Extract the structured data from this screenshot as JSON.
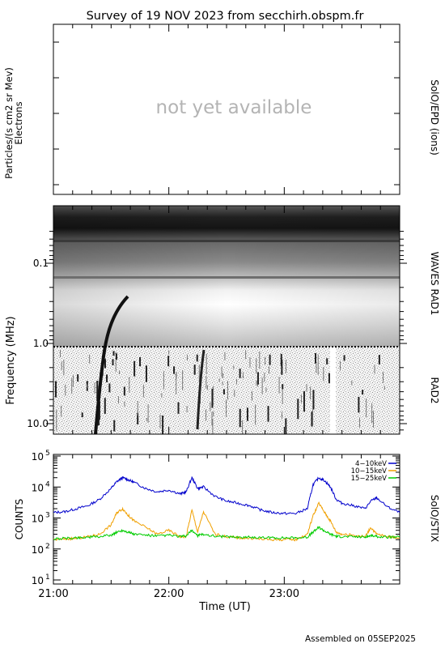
{
  "title": "Survey of 19 NOV 2023 from secchirh.obspm.fr",
  "footer": "Assembled on 05SEP2025",
  "epd": {
    "ylabel_line1": "Particles/(s cm2 sr Mev)",
    "ylabel_line2": "Electrons",
    "right_label": "SolO/EPD (ions)",
    "placeholder": "not yet available"
  },
  "waves": {
    "ylabel": "Frequency (MHz)",
    "right_label_rad1": "WAVES RAD1",
    "right_label_rad2": "RAD2",
    "y_ticks": [
      "0.1",
      "1.0",
      "10.0"
    ]
  },
  "stix": {
    "ylabel": "COUNTS",
    "right_label": "SolO/STIX",
    "y_ticks": [
      {
        "base": "10",
        "exp": "1"
      },
      {
        "base": "10",
        "exp": "2"
      },
      {
        "base": "10",
        "exp": "3"
      },
      {
        "base": "10",
        "exp": "4"
      },
      {
        "base": "10",
        "exp": "5"
      }
    ],
    "legend": [
      {
        "label": "4−10keV",
        "color": "#0000cc"
      },
      {
        "label": "10−15keV",
        "color": "#f0a000"
      },
      {
        "label": "15−25keV",
        "color": "#00cc00"
      }
    ]
  },
  "xaxis": {
    "label": "Time (UT)",
    "ticks": [
      "21:00",
      "22:00",
      "23:00"
    ]
  },
  "colors": {
    "blue": "#0000cc",
    "orange": "#f0a000",
    "green": "#00cc00"
  },
  "chart_data": {
    "type": "line",
    "title": "Survey of 19 NOV 2023 from secchirh.obspm.fr",
    "xlabel": "Time (UT)",
    "ylabel": "COUNTS",
    "x_unit": "hours UT",
    "xlim": [
      21.0,
      24.0
    ],
    "ylim": [
      10,
      100000
    ],
    "yscale": "log",
    "x": [
      21.0,
      21.1,
      21.2,
      21.3,
      21.4,
      21.5,
      21.55,
      21.6,
      21.65,
      21.7,
      21.8,
      21.9,
      22.0,
      22.1,
      22.15,
      22.2,
      22.25,
      22.3,
      22.4,
      22.5,
      22.6,
      22.7,
      22.8,
      22.9,
      23.0,
      23.1,
      23.2,
      23.25,
      23.3,
      23.35,
      23.4,
      23.45,
      23.5,
      23.6,
      23.7,
      23.75,
      23.8,
      23.9,
      24.0
    ],
    "series": [
      {
        "name": "4−10keV",
        "color": "#0000cc",
        "values": [
          1500,
          1600,
          2000,
          2500,
          4000,
          9000,
          15000,
          20000,
          17000,
          14000,
          9000,
          7000,
          8000,
          6000,
          7000,
          20000,
          9000,
          10000,
          5000,
          3500,
          3000,
          2500,
          1800,
          1500,
          1400,
          1400,
          2000,
          12000,
          20000,
          16000,
          10000,
          4000,
          3000,
          2500,
          2000,
          3500,
          4500,
          2200,
          1500
        ]
      },
      {
        "name": "10−15keV",
        "color": "#f0a000",
        "values": [
          200,
          210,
          220,
          250,
          300,
          600,
          1500,
          2000,
          1200,
          800,
          500,
          300,
          400,
          250,
          250,
          1800,
          350,
          1600,
          300,
          250,
          230,
          220,
          210,
          200,
          200,
          200,
          300,
          1200,
          3000,
          1500,
          800,
          350,
          300,
          280,
          250,
          500,
          300,
          250,
          230
        ]
      },
      {
        "name": "15−25keV",
        "color": "#00cc00",
        "values": [
          210,
          220,
          230,
          240,
          250,
          280,
          350,
          400,
          350,
          300,
          280,
          260,
          280,
          250,
          260,
          400,
          270,
          300,
          260,
          250,
          240,
          240,
          230,
          230,
          230,
          230,
          240,
          350,
          500,
          380,
          300,
          260,
          250,
          250,
          240,
          270,
          250,
          240,
          240
        ]
      }
    ]
  }
}
